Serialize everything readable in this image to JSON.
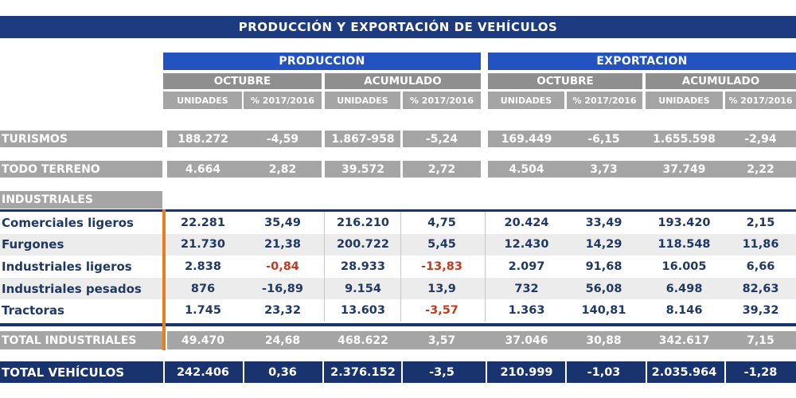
{
  "title": "PRODUCCIÓN Y EXPORTACIÓN DE VEHÍCULOS",
  "colors": {
    "title_navy": "#1d3b80",
    "total_navy": "#19336f",
    "header_blue": "#2353c0",
    "header_gray": "#8f8f8f",
    "band_gray": "#a5a5a5",
    "row_shade": "#ececec",
    "text_navy": "#1f3864",
    "negative_red": "#c43a20",
    "orange_rule": "#e87d1e",
    "grid_hairline": "#c9c9c9"
  },
  "chart_data": {
    "type": "table",
    "title": "PRODUCCIÓN Y EXPORTACIÓN DE VEHÍCULOS",
    "column_groups": [
      "PRODUCCION",
      "EXPORTACION"
    ],
    "column_periods": [
      "OCTUBRE",
      "ACUMULADO",
      "OCTUBRE",
      "ACUMULADO"
    ],
    "column_measures": [
      "UNIDADES",
      "% 2017/2016",
      "UNIDADES",
      "% 2017/2016",
      "UNIDADES",
      "% 2017/2016",
      "UNIDADES",
      "% 2017/2016"
    ],
    "rows": [
      {
        "type": "band",
        "label": "TURISMOS",
        "values": [
          "188.272",
          "-4,59",
          "1.867-958",
          "-5,24",
          "169.449",
          "-6,15",
          "1.655.598",
          "-2,94"
        ]
      },
      {
        "type": "band",
        "label": "TODO TERRENO",
        "values": [
          "4.664",
          "2,82",
          "39.572",
          "2,72",
          "4.504",
          "3,73",
          "37.749",
          "2,22"
        ]
      },
      {
        "type": "section",
        "label": "INDUSTRIALES"
      },
      {
        "type": "detail",
        "label": "Comerciales ligeros",
        "values": [
          "22.281",
          "35,49",
          "216.210",
          "4,75",
          "20.424",
          "33,49",
          "193.420",
          "2,15"
        ]
      },
      {
        "type": "detail",
        "label": "Furgones",
        "shaded": true,
        "values": [
          "21.730",
          "21,38",
          "200.722",
          "5,45",
          "12.430",
          "14,29",
          "118.548",
          "11,86"
        ]
      },
      {
        "type": "detail",
        "label": "Industriales ligeros",
        "red_values": [
          1,
          3
        ],
        "values": [
          "2.838",
          "-0,84",
          "28.933",
          "-13,83",
          "2.097",
          "91,68",
          "16.005",
          "6,66"
        ]
      },
      {
        "type": "detail",
        "label": "Industriales pesados",
        "shaded": true,
        "values": [
          "876",
          "-16,89",
          "9.154",
          "13,9",
          "732",
          "56,08",
          "6.498",
          "82,63"
        ]
      },
      {
        "type": "detail",
        "label": "Tractoras",
        "red_values": [
          3
        ],
        "values": [
          "1.745",
          "23,32",
          "13.603",
          "-3,57",
          "1.363",
          "140,81",
          "8.146",
          "39,32"
        ]
      },
      {
        "type": "total_gray",
        "label": "TOTAL INDUSTRIALES",
        "values": [
          "49.470",
          "24,68",
          "468.622",
          "3,57",
          "37.046",
          "30,88",
          "342.617",
          "7,15"
        ]
      },
      {
        "type": "total_navy",
        "label": "TOTAL VEHÍCULOS",
        "values": [
          "242.406",
          "0,36",
          "2.376.152",
          "-3,5",
          "210.999",
          "-1,03",
          "2.035.964",
          "-1,28"
        ]
      }
    ]
  }
}
